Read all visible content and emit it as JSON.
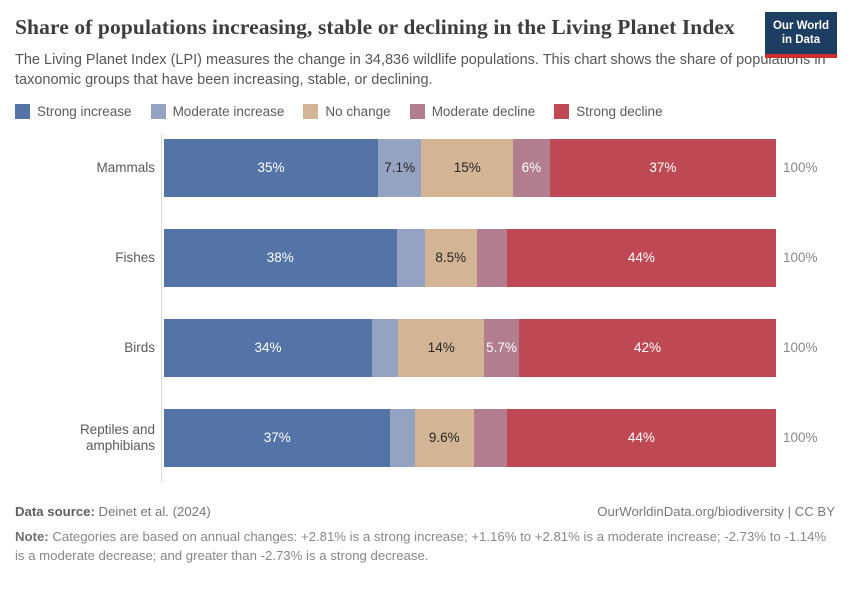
{
  "header": {
    "title": "Share of populations increasing, stable or declining in the Living Planet Index",
    "subtitle": "The Living Planet Index (LPI) measures the change in 34,836 wildlife populations. This chart shows the share of populations in taxonomic groups that have been increasing, stable, or declining.",
    "logo_line1": "Our World",
    "logo_line2": "in Data",
    "logo_bg_color": "#1d3d63",
    "logo_accent_color": "#cf2d2d"
  },
  "legend": [
    {
      "label": "Strong increase",
      "color": "#5473a6"
    },
    {
      "label": "Moderate increase",
      "color": "#94a3c2"
    },
    {
      "label": "No change",
      "color": "#d3b495"
    },
    {
      "label": "Moderate decline",
      "color": "#b17d8f"
    },
    {
      "label": "Strong decline",
      "color": "#be4954"
    }
  ],
  "chart_data": {
    "type": "bar",
    "orientation": "horizontal",
    "stacked": true,
    "unit": "%",
    "xlim": [
      0,
      100
    ],
    "grid": false,
    "legend_position": "top",
    "categories": [
      "Mammals",
      "Fishes",
      "Birds",
      "Reptiles and amphibians"
    ],
    "series": [
      {
        "name": "Strong increase",
        "color": "#5473a6",
        "label_color": "#ffffff",
        "values": [
          35,
          38,
          34,
          37
        ],
        "labels": [
          "35%",
          "38%",
          "34%",
          "37%"
        ]
      },
      {
        "name": "Moderate increase",
        "color": "#94a3c2",
        "label_color": "#262626",
        "values": [
          7.1,
          4.6,
          4.3,
          4.0
        ],
        "labels": [
          "7.1%",
          "",
          "",
          ""
        ]
      },
      {
        "name": "No change",
        "color": "#d3b495",
        "label_color": "#262626",
        "values": [
          15,
          8.5,
          14,
          9.6
        ],
        "labels": [
          "15%",
          "8.5%",
          "14%",
          "9.6%"
        ]
      },
      {
        "name": "Moderate decline",
        "color": "#b17d8f",
        "label_color": "#ffffff",
        "values": [
          6,
          4.9,
          5.7,
          5.4
        ],
        "labels": [
          "6%",
          "",
          "5.7%",
          ""
        ]
      },
      {
        "name": "Strong decline",
        "color": "#be4954",
        "label_color": "#ffffff",
        "values": [
          37,
          44,
          42,
          44
        ],
        "labels": [
          "37%",
          "44%",
          "42%",
          "44%"
        ]
      }
    ],
    "row_total_label": "100%"
  },
  "footer": {
    "source_label": "Data source:",
    "source_value": " Deinet et al. (2024)",
    "link": "OurWorldinData.org/biodiversity | CC BY",
    "note_label": "Note:",
    "note_value": " Categories are based on annual changes: +2.81% is a strong increase; +1.16% to +2.81% is a moderate increase; -2.73% to -1.14% is a moderate decrease; and greater than -2.73% is a strong decrease."
  }
}
